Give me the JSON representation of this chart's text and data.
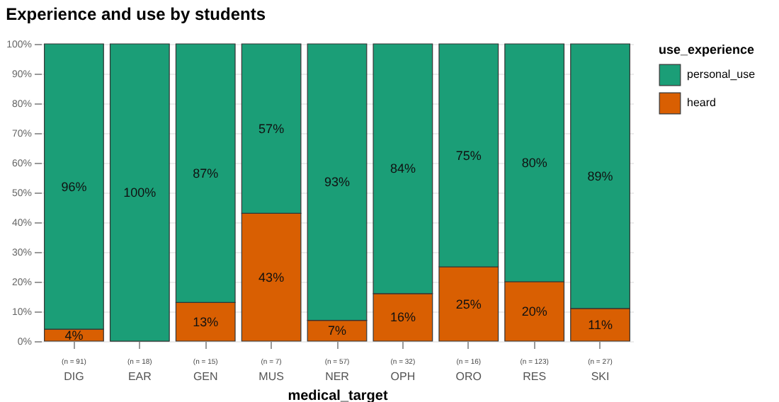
{
  "chart_data": {
    "type": "bar",
    "title": "Experience and use by students",
    "xlabel": "medical_target",
    "legend_title": "use_experience",
    "stacked": true,
    "legend": "right",
    "grid": "y",
    "categories": [
      "DIG",
      "EAR",
      "GEN",
      "MUS",
      "NER",
      "OPH",
      "ORO",
      "RES",
      "SKI"
    ],
    "series": [
      {
        "name": "heard",
        "color": "#d95f02",
        "values": [
          4,
          0,
          13,
          43,
          7,
          16,
          25,
          20,
          11
        ],
        "value_labels": [
          "4%",
          null,
          "13%",
          "43%",
          "7%",
          "16%",
          "25%",
          "20%",
          "11%"
        ]
      },
      {
        "name": "personal_use",
        "color": "#1b9e77",
        "values": [
          96,
          100,
          87,
          57,
          93,
          84,
          75,
          80,
          89
        ],
        "value_labels": [
          "96%",
          "100%",
          "87%",
          "57%",
          "93%",
          "84%",
          "75%",
          "80%",
          "89%"
        ]
      }
    ],
    "ylim": [
      0,
      100
    ],
    "yticks": [
      {
        "value": 0,
        "label": "0%"
      },
      {
        "value": 10,
        "label": "10%"
      },
      {
        "value": 20,
        "label": "20%"
      },
      {
        "value": 30,
        "label": "30%"
      },
      {
        "value": 40,
        "label": "40%"
      },
      {
        "value": 50,
        "label": "50%"
      },
      {
        "value": 60,
        "label": "60%"
      },
      {
        "value": 70,
        "label": "70%"
      },
      {
        "value": 80,
        "label": "80%"
      },
      {
        "value": 90,
        "label": "90%"
      },
      {
        "value": 100,
        "label": "100%"
      }
    ],
    "annotations": [
      "(n = 91)",
      "(n = 18)",
      "(n = 15)",
      "(n = 7)",
      "(n = 57)",
      "(n = 32)",
      "(n = 16)",
      "(n = 123)",
      "(n = 27)"
    ]
  }
}
